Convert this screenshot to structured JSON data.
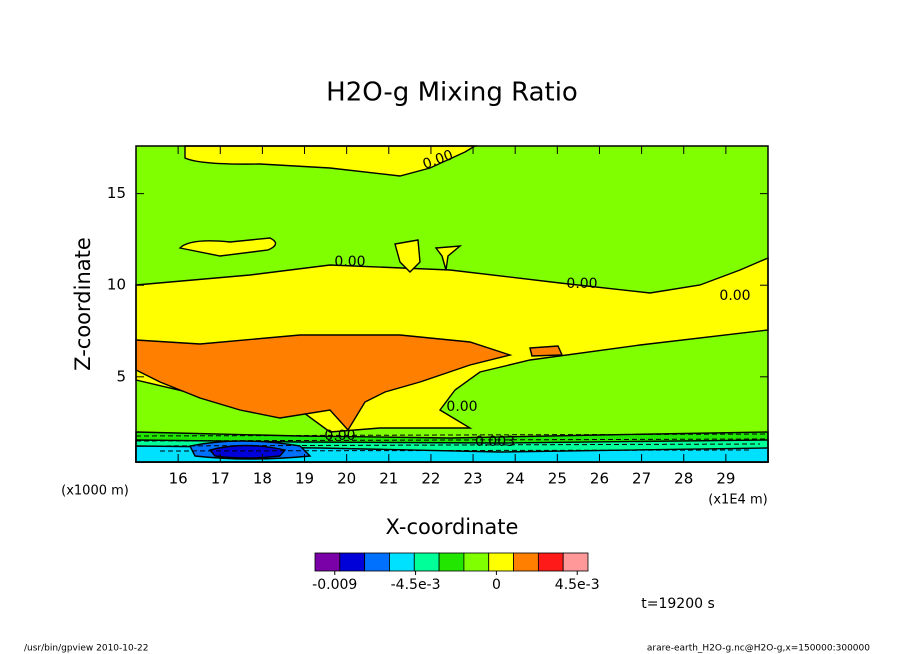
{
  "chart_data": {
    "type": "contour",
    "title": "H2O-g Mixing Ratio",
    "x_label": "X-coordinate",
    "y_label": "Z-coordinate",
    "x_unit": "(x1E4 m)",
    "y_unit": "(x1000 m)",
    "xlim": [
      15,
      30
    ],
    "xticks": [
      16,
      17,
      18,
      19,
      20,
      21,
      22,
      23,
      24,
      25,
      26,
      27,
      28,
      29
    ],
    "ylim": [
      0.35,
      17.6
    ],
    "yticks": [
      5,
      10,
      15
    ],
    "colorbar": {
      "colors": [
        "#7a00a8",
        "#0000d8",
        "#0070ff",
        "#00e0ff",
        "#00ff99",
        "#22e600",
        "#80ff00",
        "#ffff00",
        "#ff7f00",
        "#ff1a1a",
        "#ff9999"
      ],
      "lim": [
        -0.0101,
        0.0051
      ],
      "ticks": [
        {
          "value": -0.009,
          "label": "-0.009"
        },
        {
          "value": -0.0045,
          "label": "-4.5e-3"
        },
        0,
        {
          "value": 0.0045,
          "label": "4.5e-3"
        }
      ]
    },
    "contour_labels": [
      "0.00",
      "0.00",
      "0.00",
      "0.00",
      "0.00",
      "0.00",
      "0.003"
    ],
    "time_label": "t=19200 s"
  },
  "footer": {
    "left": "/usr/bin/gpview  2010-10-22",
    "right": "arare-earth_H2O-g.nc@H2O-g,x=150000:300000"
  }
}
